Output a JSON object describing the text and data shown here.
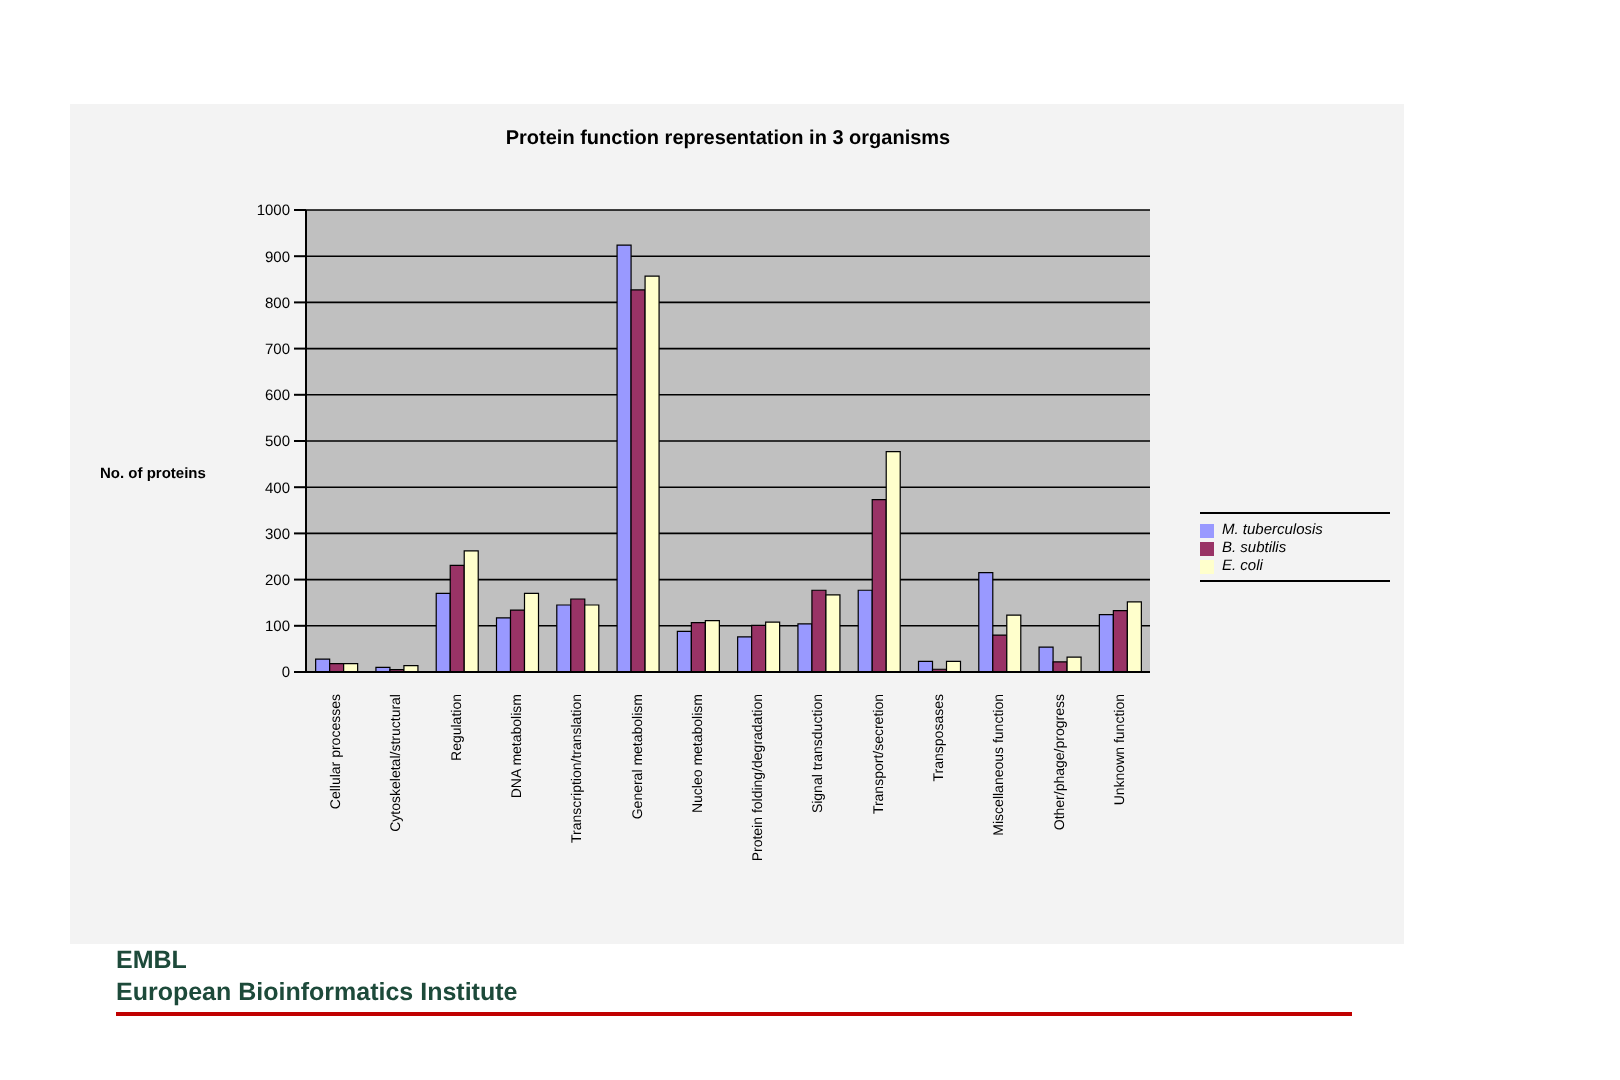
{
  "chart_data": {
    "type": "bar",
    "title": "Protein function representation in 3 organisms",
    "ylabel": "No. of proteins",
    "categories": [
      "Cellular processes",
      "Cytoskeletal/structural",
      "Regulation",
      "DNA metabolism",
      "Transcription/translation",
      "General metabolism",
      "Nucleo metabolism",
      "Protein folding/degradation",
      "Signal transduction",
      "Transport/secretion",
      "Transposases",
      "Miscellaneous function",
      "Other/phage/progress",
      "Unknown function"
    ],
    "series": [
      {
        "name": "M. tuberculosis",
        "color": "#9999ff",
        "values": [
          28,
          10,
          170,
          117,
          145,
          924,
          88,
          76,
          104,
          177,
          23,
          215,
          54,
          124
        ]
      },
      {
        "name": "B. subtilis",
        "color": "#993366",
        "values": [
          18,
          5,
          231,
          134,
          158,
          827,
          107,
          101,
          177,
          373,
          6,
          80,
          22,
          133
        ]
      },
      {
        "name": "E. coli",
        "color": "#ffffcc",
        "values": [
          18,
          14,
          262,
          170,
          145,
          857,
          111,
          108,
          167,
          477,
          23,
          123,
          32,
          152
        ]
      }
    ],
    "ylim": [
      0,
      1000
    ],
    "yticks": [
      0,
      100,
      200,
      300,
      400,
      500,
      600,
      700,
      800,
      900,
      1000
    ],
    "grid": "y",
    "legend": "right",
    "annotations": [
      "EMBL",
      "European Bioinformatics Institute"
    ]
  }
}
